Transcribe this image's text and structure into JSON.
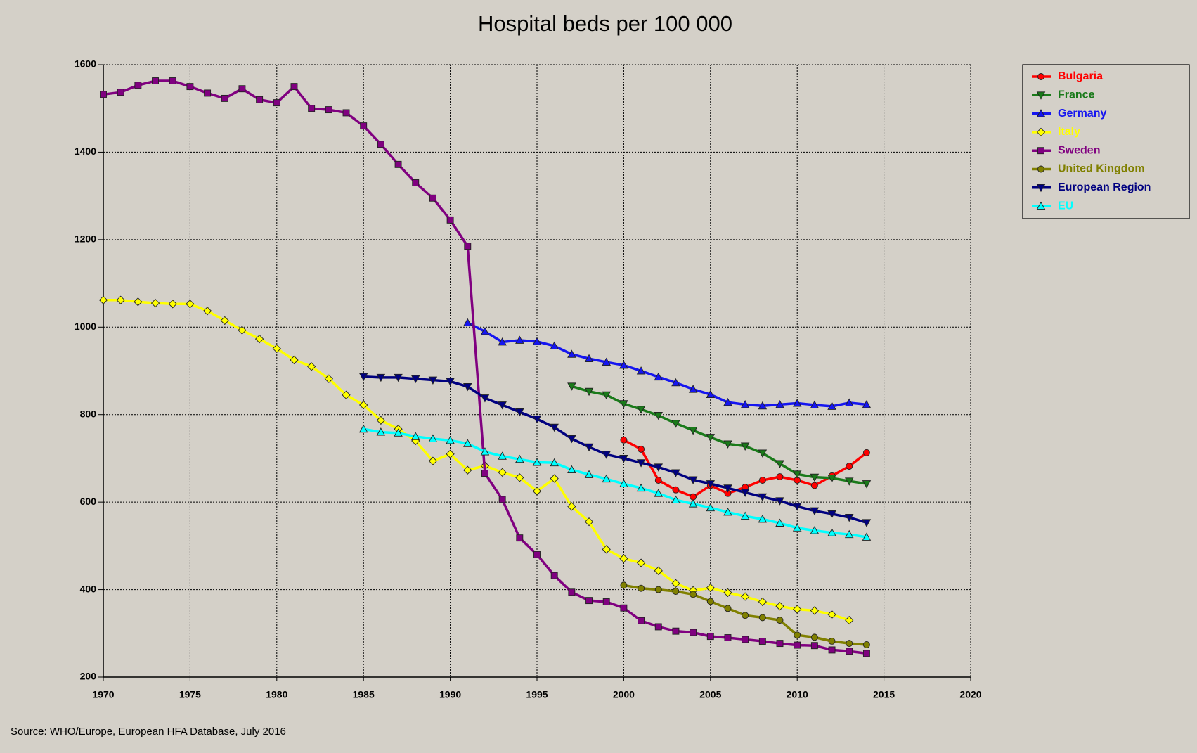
{
  "chart_data": {
    "type": "line",
    "title": "Hospital beds per 100 000",
    "source": "Source: WHO/Europe, European HFA Database, July 2016",
    "x": [
      1970,
      1971,
      1972,
      1973,
      1974,
      1975,
      1976,
      1977,
      1978,
      1979,
      1980,
      1981,
      1982,
      1983,
      1984,
      1985,
      1986,
      1987,
      1988,
      1989,
      1990,
      1991,
      1992,
      1993,
      1994,
      1995,
      1996,
      1997,
      1998,
      1999,
      2000,
      2001,
      2002,
      2003,
      2004,
      2005,
      2006,
      2007,
      2008,
      2009,
      2010,
      2011,
      2012,
      2013,
      2014
    ],
    "xlim": [
      1970,
      2020
    ],
    "xticks": [
      1970,
      1975,
      1980,
      1985,
      1990,
      1995,
      2000,
      2005,
      2010,
      2015,
      2020
    ],
    "ylim": [
      200,
      1600
    ],
    "yticks": [
      200,
      400,
      600,
      800,
      1000,
      1200,
      1400,
      1600
    ],
    "grid": true,
    "legend": "upper right outside",
    "series": [
      {
        "name": "Bulgaria",
        "color": "#ff0000",
        "marker": "circle",
        "values": [
          null,
          null,
          null,
          null,
          null,
          null,
          null,
          null,
          null,
          null,
          null,
          null,
          null,
          null,
          null,
          null,
          null,
          null,
          null,
          null,
          null,
          null,
          null,
          null,
          null,
          null,
          null,
          null,
          null,
          null,
          742,
          721,
          650,
          628,
          612,
          638,
          620,
          634,
          650,
          658,
          650,
          638,
          660,
          682,
          713
        ]
      },
      {
        "name": "France",
        "color": "#1a7a1a",
        "marker": "triangle-down",
        "values": [
          null,
          null,
          null,
          null,
          null,
          null,
          null,
          null,
          null,
          null,
          null,
          null,
          null,
          null,
          null,
          null,
          null,
          null,
          null,
          null,
          null,
          null,
          null,
          null,
          null,
          null,
          null,
          865,
          853,
          845,
          825,
          812,
          798,
          780,
          764,
          748,
          733,
          728,
          712,
          688,
          664,
          657,
          655,
          648,
          642
        ]
      },
      {
        "name": "Germany",
        "color": "#1515f0",
        "marker": "triangle-up",
        "values": [
          null,
          null,
          null,
          null,
          null,
          null,
          null,
          null,
          null,
          null,
          null,
          null,
          null,
          null,
          null,
          null,
          null,
          null,
          null,
          null,
          null,
          1010,
          990,
          966,
          970,
          967,
          957,
          938,
          928,
          920,
          913,
          900,
          886,
          873,
          858,
          846,
          828,
          823,
          820,
          823,
          826,
          822,
          819,
          827,
          823
        ]
      },
      {
        "name": "Italy",
        "color": "#ffff00",
        "marker": "diamond",
        "values": [
          1062,
          1062,
          1058,
          1055,
          1053,
          1053,
          1037,
          1015,
          993,
          973,
          951,
          925,
          910,
          882,
          845,
          822,
          787,
          767,
          740,
          694,
          710,
          673,
          683,
          668,
          656,
          625,
          654,
          590,
          555,
          492,
          471,
          461,
          443,
          414,
          398,
          404,
          393,
          384,
          372,
          362,
          355,
          352,
          343,
          330,
          null
        ]
      },
      {
        "name": "Sweden",
        "color": "#800080",
        "marker": "square",
        "values": [
          1532,
          1537,
          1553,
          1563,
          1563,
          1550,
          1535,
          1523,
          1545,
          1520,
          1513,
          1550,
          1500,
          1497,
          1490,
          1460,
          1418,
          1372,
          1330,
          1295,
          1245,
          1185,
          666,
          606,
          518,
          480,
          432,
          394,
          375,
          372,
          358,
          329,
          315,
          305,
          302,
          293,
          290,
          286,
          282,
          277,
          273,
          272,
          262,
          259,
          254
        ]
      },
      {
        "name": "United Kingdom",
        "color": "#808000",
        "marker": "circle",
        "values": [
          null,
          null,
          null,
          null,
          null,
          null,
          null,
          null,
          null,
          null,
          null,
          null,
          null,
          null,
          null,
          null,
          null,
          null,
          null,
          null,
          null,
          null,
          null,
          null,
          null,
          null,
          null,
          null,
          null,
          null,
          410,
          403,
          400,
          396,
          389,
          373,
          357,
          341,
          336,
          330,
          296,
          291,
          282,
          277,
          274
        ]
      },
      {
        "name": "European Region",
        "color": "#000080",
        "marker": "triangle-down",
        "values": [
          null,
          null,
          null,
          null,
          null,
          null,
          null,
          null,
          null,
          null,
          null,
          null,
          null,
          null,
          null,
          887,
          885,
          885,
          882,
          879,
          876,
          864,
          838,
          822,
          806,
          790,
          771,
          745,
          726,
          709,
          700,
          690,
          680,
          667,
          651,
          642,
          632,
          622,
          612,
          603,
          590,
          580,
          573,
          565,
          553
        ]
      },
      {
        "name": "EU",
        "color": "#00ffff",
        "marker": "triangle-up",
        "values": [
          null,
          null,
          null,
          null,
          null,
          null,
          null,
          null,
          null,
          null,
          null,
          null,
          null,
          null,
          null,
          767,
          760,
          758,
          750,
          745,
          741,
          734,
          715,
          705,
          698,
          691,
          690,
          674,
          663,
          653,
          642,
          632,
          620,
          605,
          596,
          587,
          577,
          568,
          561,
          552,
          541,
          535,
          530,
          526,
          520
        ]
      }
    ]
  }
}
